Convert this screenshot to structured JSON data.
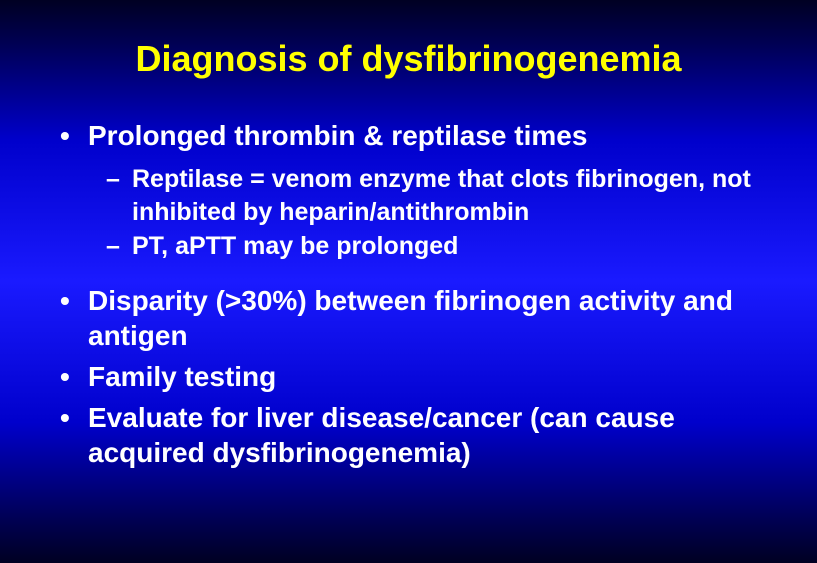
{
  "slide": {
    "title": "Diagnosis of dysfibrinogenemia",
    "title_color": "#ffff00",
    "text_color": "#ffffff",
    "background_gradient": [
      "#000022",
      "#0000cc",
      "#1a1aff",
      "#0000cc",
      "#000022"
    ],
    "title_fontsize": 36,
    "bullet1_fontsize": 28,
    "bullet2_fontsize": 25,
    "font_family": "Arial",
    "bullets": [
      {
        "text": "Prolonged thrombin & reptilase times",
        "sub": [
          "Reptilase = venom enzyme that clots fibrinogen, not inhibited by heparin/antithrombin",
          "PT, aPTT may be prolonged"
        ]
      },
      {
        "text": "Disparity (>30%) between fibrinogen activity and antigen"
      },
      {
        "text": "Family testing"
      },
      {
        "text": "Evaluate for liver disease/cancer (can cause acquired dysfibrinogenemia)"
      }
    ]
  }
}
